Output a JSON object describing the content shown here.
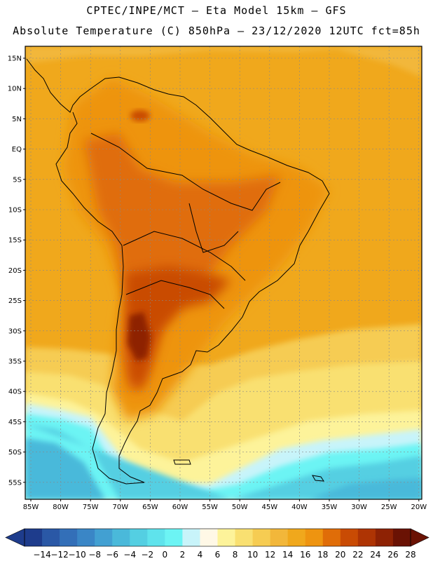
{
  "title": {
    "line1": "CPTEC/INPE/MCT –  Eta Model 15km – GFS",
    "line2": "Absolute Temperature (C) 850hPa – 23/12/2020 12UTC fct=85h"
  },
  "map": {
    "lat_labels": [
      "15N",
      "10N",
      "5N",
      "EQ",
      "5S",
      "10S",
      "15S",
      "20S",
      "25S",
      "30S",
      "35S",
      "40S",
      "45S",
      "50S",
      "55S"
    ],
    "lon_labels": [
      "85W",
      "80W",
      "75W",
      "70W",
      "65W",
      "60W",
      "55W",
      "50W",
      "45W",
      "40W",
      "35W",
      "30W",
      "25W",
      "20W"
    ]
  },
  "colorbar": {
    "labels": [
      "-14",
      "-12",
      "-10",
      "-8",
      "-6",
      "-4",
      "-2",
      "0",
      "2",
      "4",
      "6",
      "8",
      "10",
      "12",
      "14",
      "16",
      "18",
      "20",
      "22",
      "24",
      "26",
      "28"
    ],
    "colors": [
      "#1e3c8c",
      "#2a58a6",
      "#336fb8",
      "#3a86c6",
      "#42a0d2",
      "#4ab9da",
      "#54cfe2",
      "#5fe3ec",
      "#6cf4f4",
      "#c8f4fa",
      "#fff8e6",
      "#fdf39a",
      "#f9e071",
      "#f6cc52",
      "#f2b73a",
      "#f0a81c",
      "#ee9410",
      "#e06d08",
      "#c94b04",
      "#ae3404",
      "#8e2204",
      "#6a1204"
    ]
  }
}
